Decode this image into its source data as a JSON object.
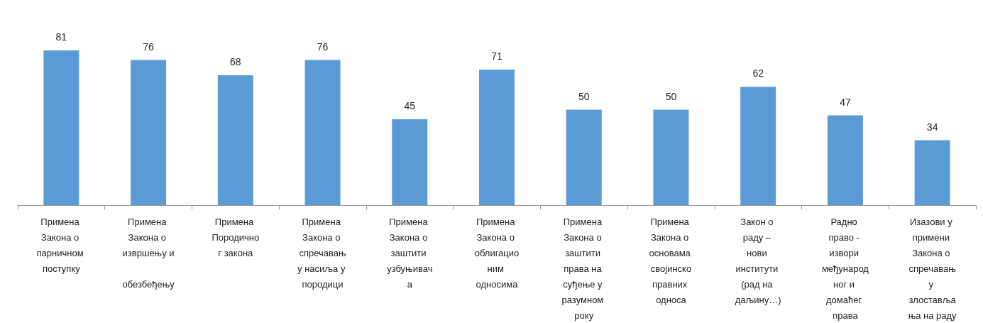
{
  "chart_data": {
    "type": "bar",
    "categories": [
      "Примена Закона о парничном поступку",
      "Примена Закона о извршењу и обезбеђењу",
      "Примена Породичног закона",
      "Примена Закона о спречавању насиља у породици",
      "Примена Закона о заштити узбуњивача",
      "Примена Закона о облигационим односима",
      "Примена Закона о заштити права на суђење у разумном року",
      "Примена Закона о основама својинскоправних односа",
      "Закон о раду – нови институти (рад на даљину…)",
      "Радно право - извори међународног и домаћег права",
      "Изазови у примени Закона о спречавању злостављања на раду"
    ],
    "values": [
      81,
      76,
      68,
      76,
      45,
      71,
      50,
      50,
      62,
      47,
      34
    ],
    "color": "#5b9bd5",
    "data_labels": true
  }
}
